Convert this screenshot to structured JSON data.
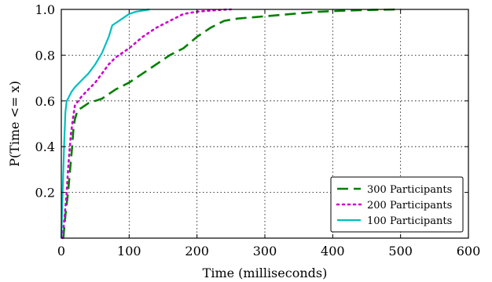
{
  "chart_data": {
    "type": "line",
    "title": "",
    "xlabel": "Time (milliseconds)",
    "ylabel": "P(Time <= x)",
    "xlim": [
      0,
      600
    ],
    "ylim": [
      0,
      1.0
    ],
    "xticks": [
      0,
      100,
      200,
      300,
      400,
      500,
      600
    ],
    "xtick_labels": [
      "0",
      "100",
      "200",
      "300",
      "400",
      "500",
      "600"
    ],
    "yticks": [
      0.2,
      0.4,
      0.6,
      0.8,
      1.0
    ],
    "ytick_labels": [
      "0.2",
      "0.4",
      "0.6",
      "0.8",
      "1.0"
    ],
    "grid": true,
    "legend_position": "bottom-right",
    "series": [
      {
        "name": "300 Participants",
        "color": "#008000",
        "style": "dashed",
        "x": [
          3,
          6,
          10,
          13,
          16,
          18,
          20,
          24,
          30,
          40,
          60,
          80,
          100,
          120,
          140,
          160,
          180,
          200,
          220,
          240,
          260,
          300,
          340,
          380,
          420,
          460,
          500
        ],
        "y": [
          0.0,
          0.1,
          0.2,
          0.3,
          0.4,
          0.48,
          0.52,
          0.56,
          0.57,
          0.59,
          0.61,
          0.65,
          0.68,
          0.72,
          0.76,
          0.8,
          0.83,
          0.88,
          0.92,
          0.95,
          0.96,
          0.97,
          0.98,
          0.99,
          0.995,
          0.998,
          1.0
        ]
      },
      {
        "name": "200 Participants",
        "color": "#cc00cc",
        "style": "dotted",
        "x": [
          2,
          5,
          8,
          10,
          12,
          14,
          17,
          20,
          30,
          40,
          50,
          60,
          70,
          80,
          90,
          100,
          120,
          140,
          160,
          180,
          200,
          220,
          240,
          250
        ],
        "y": [
          0.0,
          0.1,
          0.2,
          0.3,
          0.38,
          0.45,
          0.52,
          0.58,
          0.62,
          0.65,
          0.68,
          0.72,
          0.76,
          0.79,
          0.81,
          0.83,
          0.88,
          0.92,
          0.95,
          0.98,
          0.99,
          0.995,
          0.999,
          1.0
        ]
      },
      {
        "name": "100 Participants",
        "color": "#00bfbf",
        "style": "solid",
        "x": [
          0,
          2,
          4,
          6,
          8,
          10,
          15,
          20,
          30,
          40,
          50,
          60,
          70,
          75,
          80,
          90,
          100,
          110,
          120,
          130
        ],
        "y": [
          0.0,
          0.2,
          0.4,
          0.55,
          0.6,
          0.61,
          0.64,
          0.66,
          0.69,
          0.72,
          0.76,
          0.81,
          0.88,
          0.93,
          0.94,
          0.96,
          0.98,
          0.99,
          0.995,
          1.0
        ]
      }
    ]
  }
}
